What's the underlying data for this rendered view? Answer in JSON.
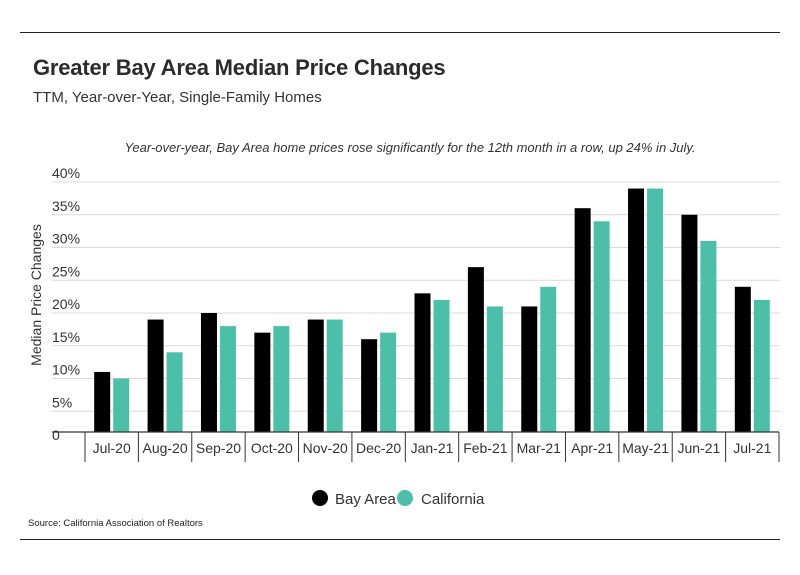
{
  "header": {
    "title": "Greater Bay Area Median Price Changes",
    "subtitle": "TTM, Year-over-Year, Single-Family Homes"
  },
  "footer": {
    "source": "Source:  California Association of Realtors"
  },
  "colors": {
    "bay_area": "#000000",
    "california": "#4dbfa8",
    "grid": "#d9d9d9",
    "axis": "#333333"
  },
  "chart_data": {
    "type": "bar",
    "annotation": "Year-over-year, Bay Area home prices rose significantly for the 12th month in a row, up 24% in July.",
    "ylabel": "Median Price Changes",
    "xlabel": "",
    "ylim": [
      0,
      40
    ],
    "yticks": [
      0,
      5,
      10,
      15,
      20,
      25,
      30,
      35,
      40
    ],
    "ytick_labels": [
      "0",
      "5%",
      "10%",
      "15%",
      "20%",
      "25%",
      "30%",
      "35%",
      "40%"
    ],
    "categories": [
      "Jul-20",
      "Aug-20",
      "Sep-20",
      "Oct-20",
      "Nov-20",
      "Dec-20",
      "Jan-21",
      "Feb-21",
      "Mar-21",
      "Apr-21",
      "May-21",
      "Jun-21",
      "Jul-21"
    ],
    "series": [
      {
        "name": "Bay Area",
        "values": [
          11,
          19,
          20,
          17,
          19,
          16,
          23,
          27,
          21,
          36,
          39,
          35,
          24
        ]
      },
      {
        "name": "California",
        "values": [
          10,
          14,
          18,
          18,
          19,
          17,
          22,
          21,
          24,
          34,
          39,
          31,
          22
        ]
      }
    ],
    "grid": true,
    "legend": "bottom-center"
  }
}
